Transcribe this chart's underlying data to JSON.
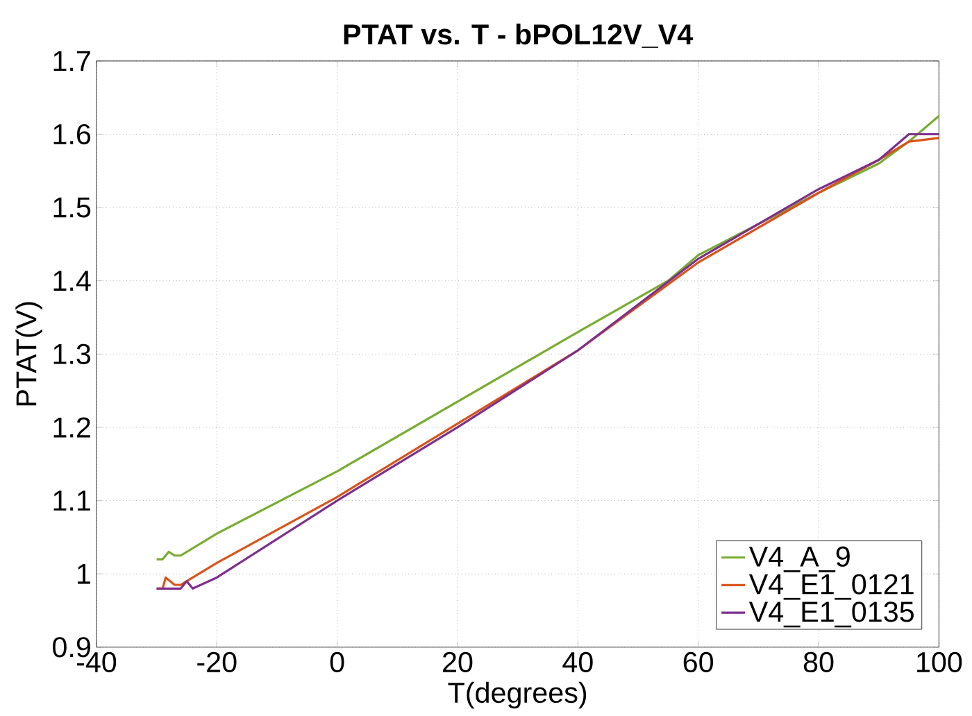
{
  "chart_data": {
    "type": "line",
    "title": "PTAT vs. T - bPOL12V_V4",
    "xlabel": "T(degrees)",
    "ylabel": "PTAT(V)",
    "xlim": [
      -40,
      100
    ],
    "ylim": [
      0.9,
      1.7
    ],
    "xticks": [
      -40,
      -20,
      0,
      20,
      40,
      60,
      80,
      100
    ],
    "yticks": [
      0.9,
      1,
      1.1,
      1.2,
      1.3,
      1.4,
      1.5,
      1.6,
      1.7
    ],
    "grid": true,
    "legend": "bottom right",
    "series": [
      {
        "name": "V4_A_9",
        "color": "#77ac30",
        "x": [
          -30,
          -29,
          -28,
          -27,
          -26,
          -20,
          0,
          20,
          40,
          55,
          60,
          80,
          90,
          95,
          100
        ],
        "values": [
          1.02,
          1.02,
          1.03,
          1.025,
          1.025,
          1.055,
          1.14,
          1.235,
          1.33,
          1.4,
          1.435,
          1.52,
          1.56,
          1.59,
          1.625
        ]
      },
      {
        "name": "V4_E1_0121",
        "color": "#d95319",
        "x": [
          -30,
          -29,
          -28.5,
          -27,
          -26,
          -25,
          -20,
          0,
          20,
          40,
          60,
          80,
          90,
          95,
          100
        ],
        "values": [
          0.98,
          0.98,
          0.995,
          0.985,
          0.985,
          0.99,
          1.015,
          1.105,
          1.205,
          1.305,
          1.425,
          1.52,
          1.565,
          1.59,
          1.595
        ]
      },
      {
        "name": "V4_E1_0135",
        "color": "#7e2f8e",
        "x": [
          -30,
          -28,
          -26,
          -25,
          -24,
          -20,
          0,
          20,
          40,
          60,
          80,
          90,
          95,
          100
        ],
        "values": [
          0.98,
          0.98,
          0.98,
          0.99,
          0.98,
          0.995,
          1.1,
          1.2,
          1.305,
          1.43,
          1.525,
          1.565,
          1.6,
          1.6
        ]
      }
    ]
  }
}
